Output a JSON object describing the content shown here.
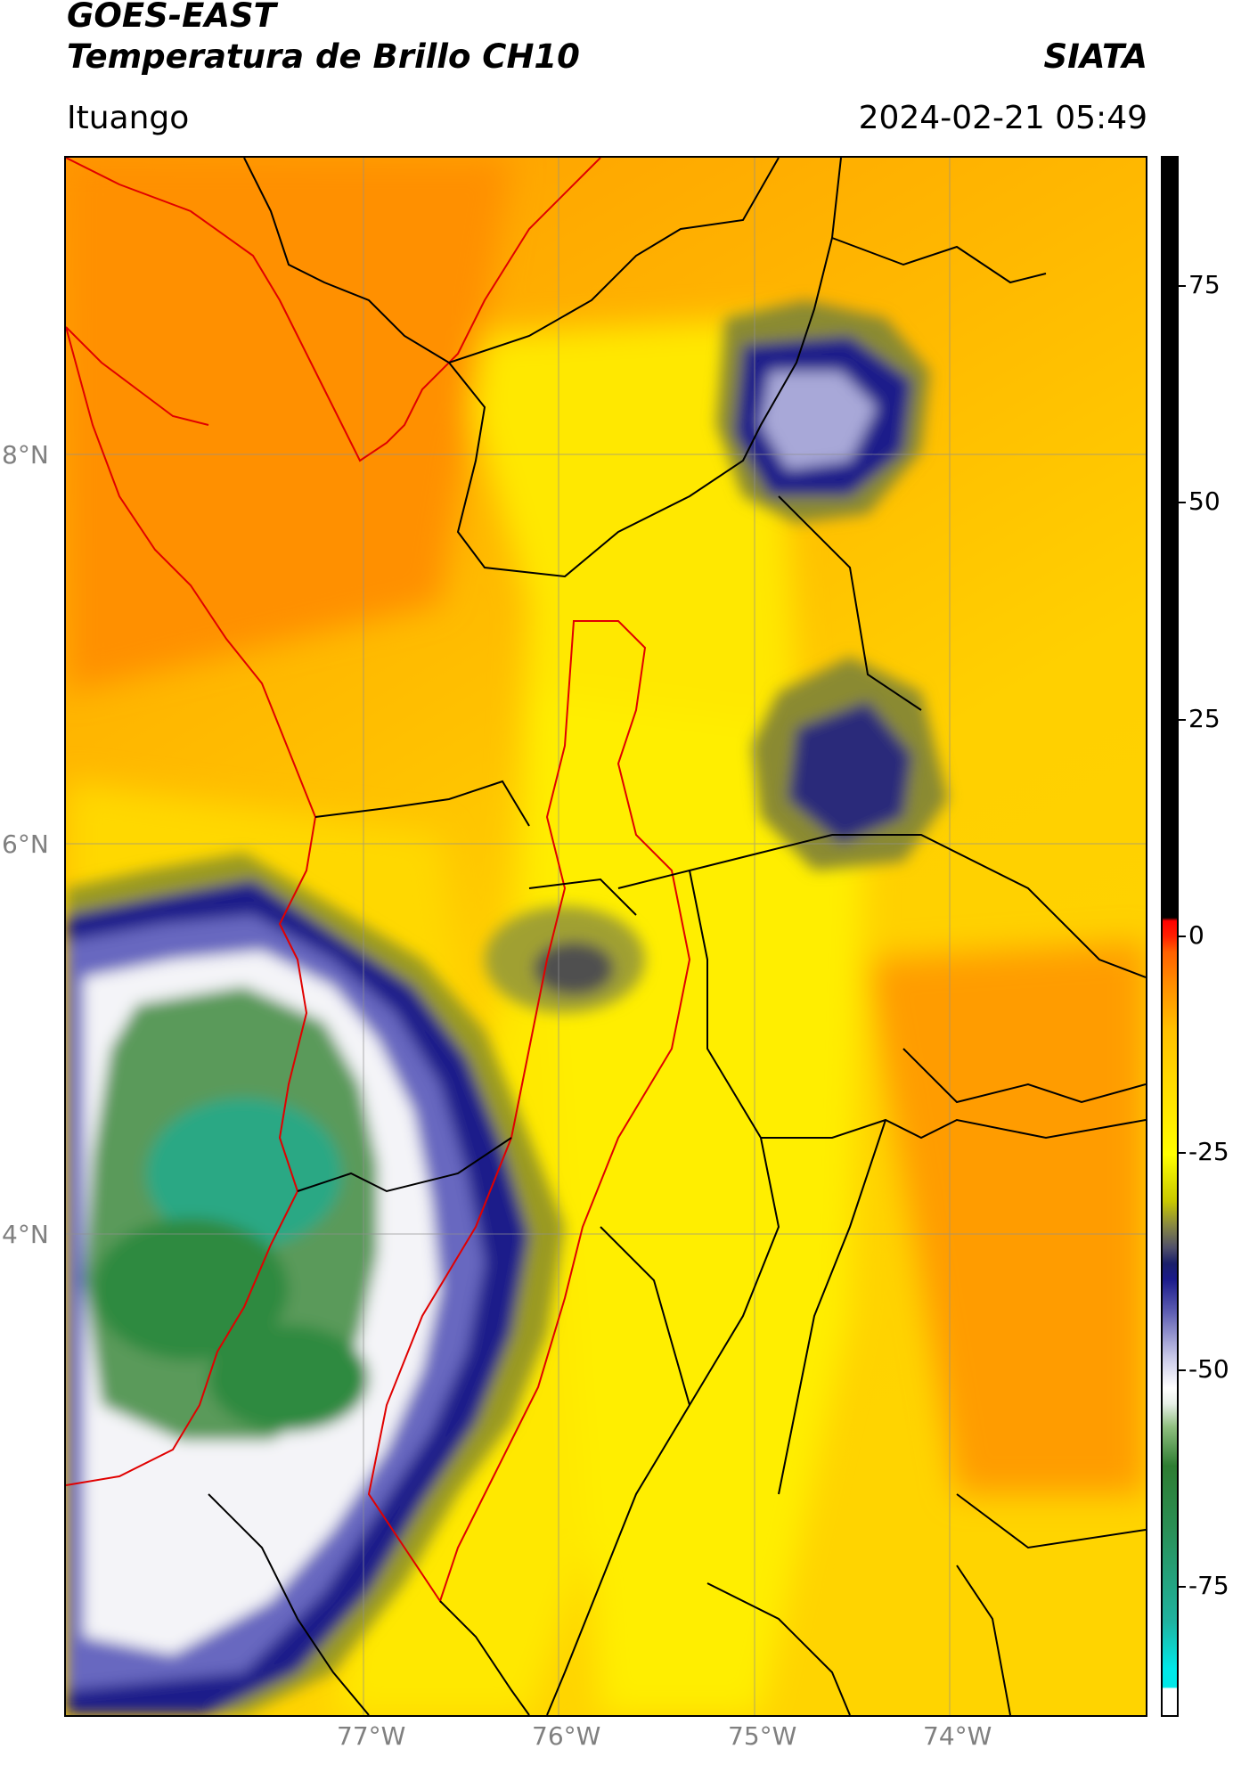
{
  "header": {
    "satellite": "GOES-EAST",
    "product": "Temperatura de Brillo CH10",
    "agency": "SIATA",
    "region": "Ituango",
    "datetime": "2024-02-21 05:49"
  },
  "map": {
    "lat_labels": [
      "8°N",
      "6°N",
      "4°N"
    ],
    "lat_values": [
      8,
      6,
      4
    ],
    "lon_labels": [
      "77°W",
      "76°W",
      "75°W",
      "74°W"
    ],
    "lon_values": [
      -77,
      -76,
      -75,
      -74
    ],
    "extent": {
      "lon_min": -78.5,
      "lon_max": -73.0,
      "lat_min": 2.4,
      "lat_max": 9.55
    }
  },
  "colorbar": {
    "tick_labels": [
      "75",
      "50",
      "25",
      "0",
      "-25",
      "-50",
      "-75"
    ],
    "tick_values": [
      75,
      50,
      25,
      0,
      -25,
      -50,
      -75
    ],
    "range": [
      -90,
      90
    ]
  }
}
